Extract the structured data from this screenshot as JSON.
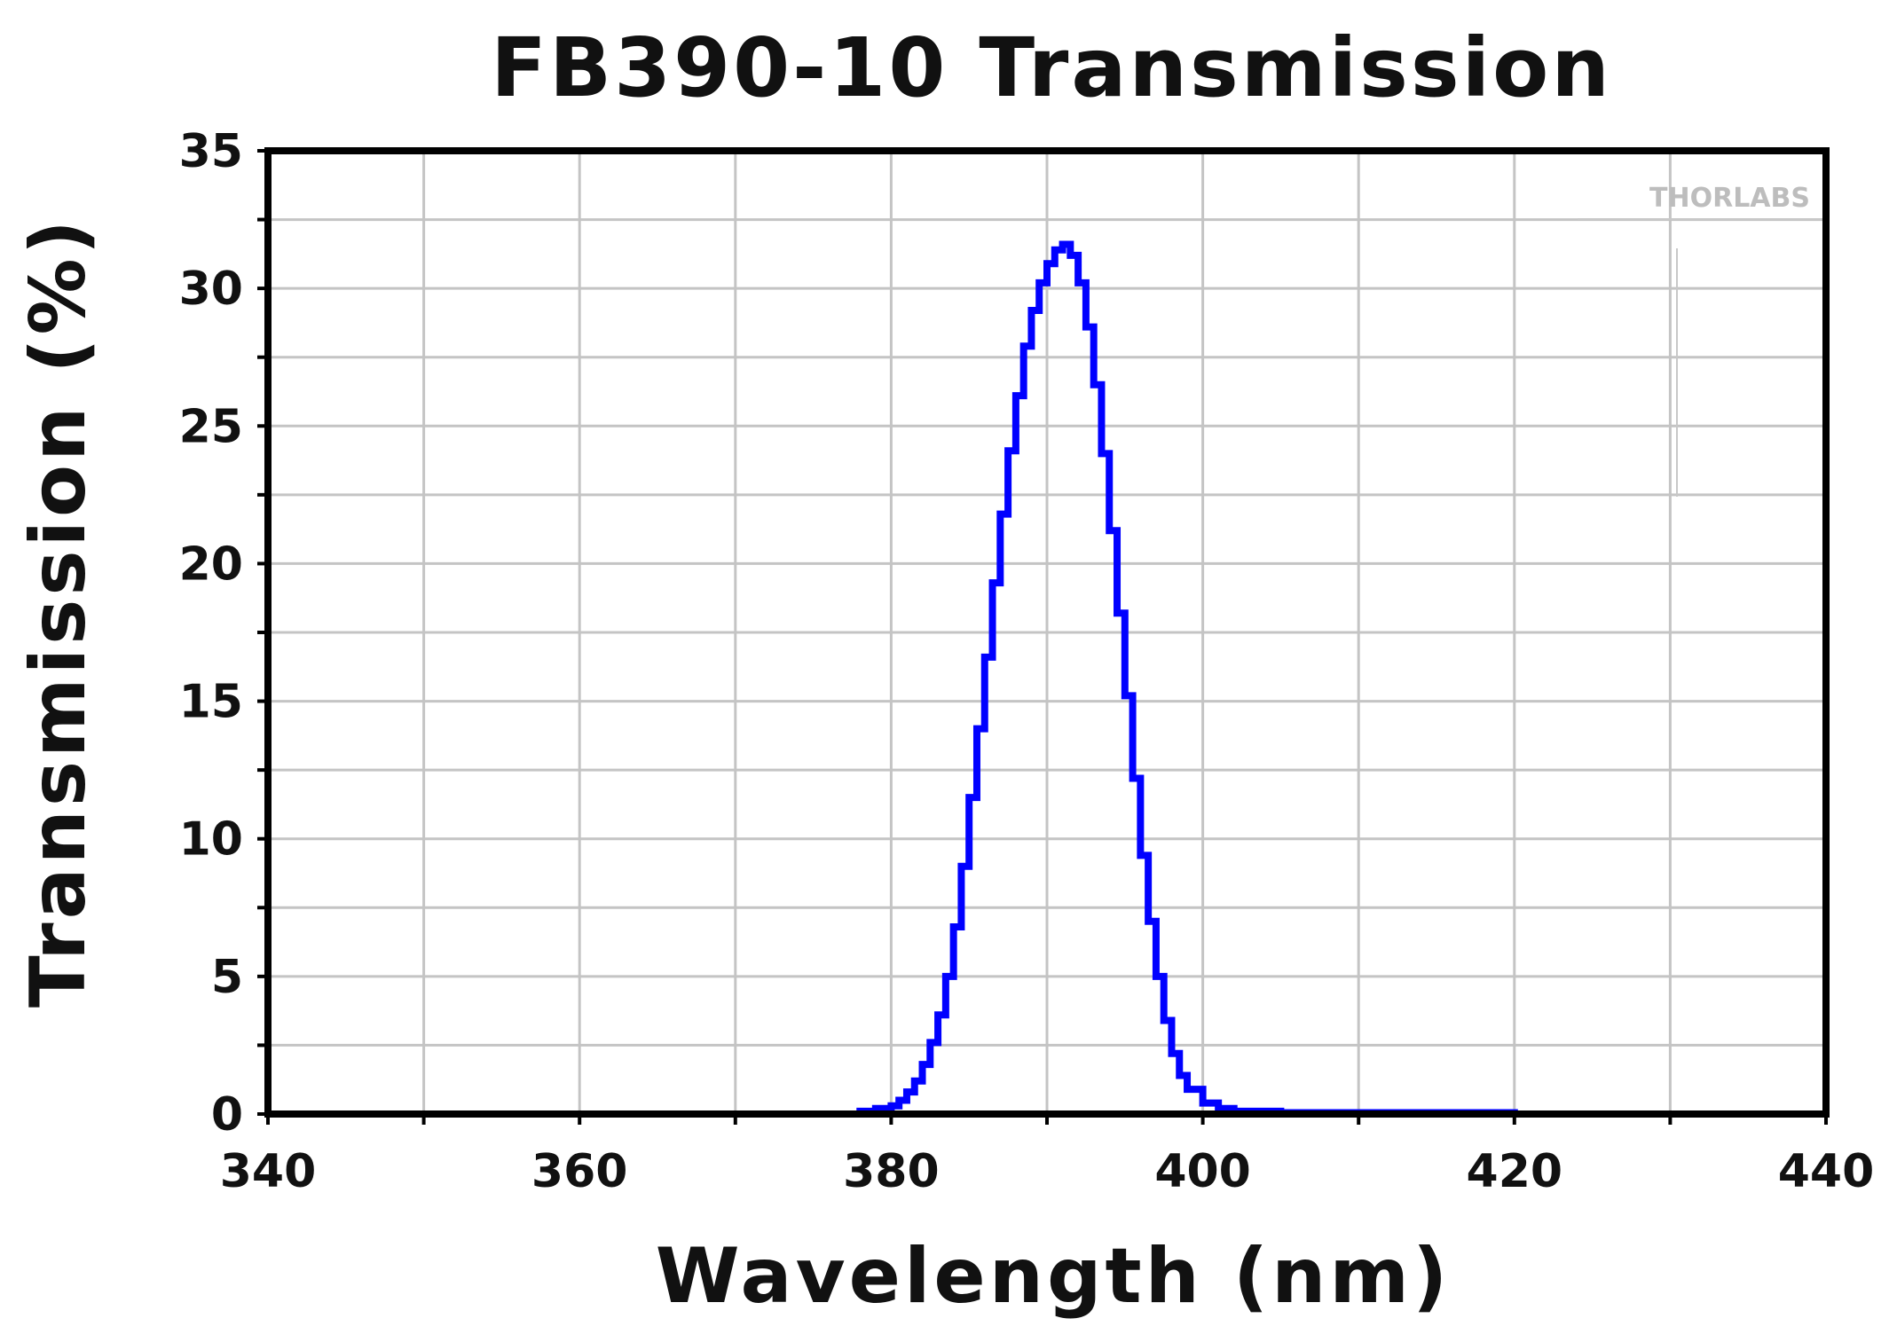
{
  "chart_data": {
    "type": "line",
    "title": "FB390-10 Transmission",
    "xlabel": "Wavelength (nm)",
    "ylabel": "Transmission (%)",
    "xlim": [
      340,
      440
    ],
    "ylim": [
      0,
      35
    ],
    "x_ticks": [
      340,
      360,
      380,
      400,
      420,
      440
    ],
    "y_ticks": [
      0,
      5,
      10,
      15,
      20,
      25,
      30,
      35
    ],
    "grid": true,
    "watermark": "THORLABS",
    "series": [
      {
        "color": "#0000ff",
        "x": [
          340,
          360,
          378,
          379,
          380,
          380.5,
          381,
          381.5,
          382,
          382.5,
          383,
          383.5,
          384,
          384.5,
          385,
          385.5,
          386,
          386.5,
          387,
          387.5,
          388,
          388.5,
          389,
          389.5,
          390,
          390.5,
          391,
          391.5,
          392,
          392.5,
          393,
          393.5,
          394,
          394.5,
          395,
          395.5,
          396,
          396.5,
          397,
          397.5,
          398,
          398.5,
          399,
          400,
          401,
          402,
          405,
          420,
          440
        ],
        "y": [
          0,
          0,
          0.1,
          0.2,
          0.3,
          0.5,
          0.8,
          1.2,
          1.8,
          2.6,
          3.6,
          5.0,
          6.8,
          9.0,
          11.5,
          14.0,
          16.6,
          19.3,
          21.8,
          24.1,
          26.1,
          27.9,
          29.2,
          30.2,
          30.9,
          31.4,
          31.6,
          31.2,
          30.2,
          28.6,
          26.5,
          24.0,
          21.2,
          18.2,
          15.2,
          12.2,
          9.4,
          7.0,
          5.0,
          3.4,
          2.2,
          1.4,
          0.9,
          0.4,
          0.2,
          0.1,
          0.05,
          0,
          0
        ]
      }
    ]
  }
}
